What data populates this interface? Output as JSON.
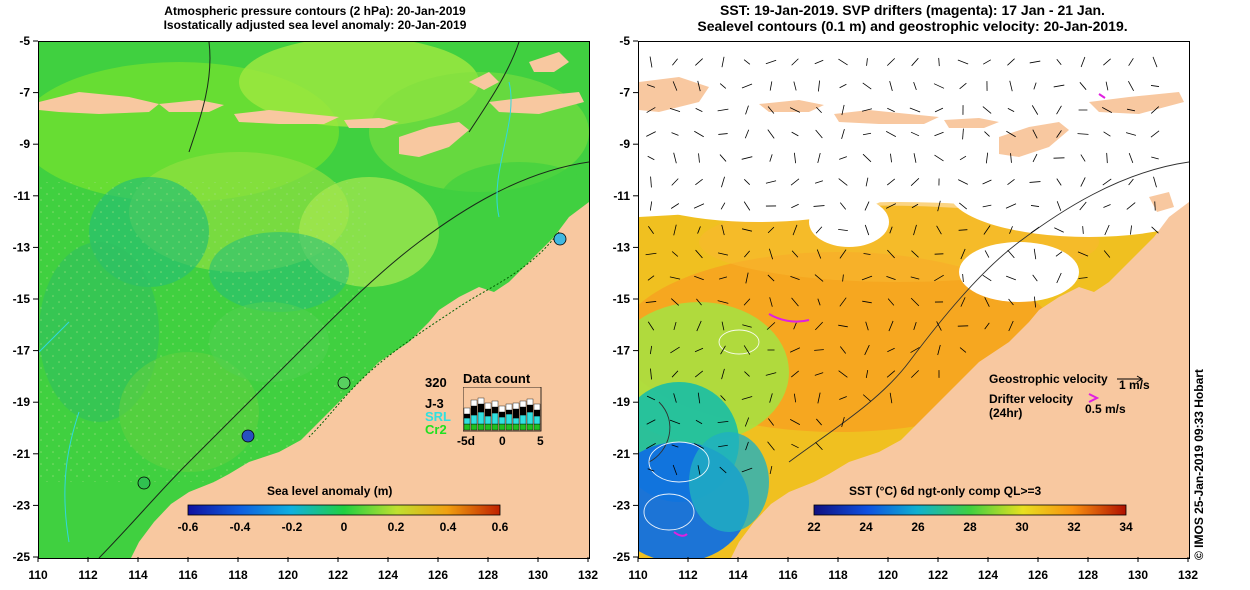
{
  "left_panel": {
    "title_line1": "Atmospheric pressure contours (2 hPa): 20-Jan-2019",
    "title_line2": "Isostatically adjusted sea level anomaly: 20-Jan-2019",
    "colorbar_title": "Sea level anomaly (m)",
    "colorbar_ticks": [
      "-0.6",
      "-0.4",
      "-0.2",
      "0",
      "0.2",
      "0.4",
      "0.6"
    ],
    "colorbar_range": [
      -0.6,
      0.6
    ],
    "inset": {
      "title": "Data count",
      "max_label": "320",
      "series": [
        {
          "name": "J-3",
          "color": "#000000"
        },
        {
          "name": "SRL",
          "color": "#30e0e0"
        },
        {
          "name": "Cr2",
          "color": "#20c020"
        }
      ],
      "x_ticks": [
        "-5d",
        "0",
        "5"
      ]
    }
  },
  "right_panel": {
    "title_line1": "SST: 19-Jan-2019. SVP drifters (magenta): 17 Jan - 21 Jan.",
    "title_line2": "Sealevel contours (0.1 m) and geostrophic velocity: 20-Jan-2019.",
    "colorbar_title": "SST (°C) 6d ngt-only comp QL>=3",
    "colorbar_ticks": [
      "22",
      "24",
      "26",
      "28",
      "30",
      "32",
      "34"
    ],
    "colorbar_range": [
      22,
      34
    ],
    "legend_geo_label": "Geostrophic velocity",
    "legend_geo_scale": "1 m/s",
    "legend_drifter_label": "Drifter velocity",
    "legend_drifter_sub": "(24hr)",
    "legend_drifter_scale": "0.5 m/s"
  },
  "axes": {
    "lon_ticks": [
      "110",
      "112",
      "114",
      "116",
      "118",
      "120",
      "122",
      "124",
      "126",
      "128",
      "130",
      "132"
    ],
    "lat_ticks": [
      "-5",
      "-7",
      "-9",
      "-11",
      "-13",
      "-15",
      "-17",
      "-19",
      "-21",
      "-23",
      "-25"
    ],
    "lon_range": [
      110,
      132
    ],
    "lat_range": [
      -25,
      -5
    ]
  },
  "copyright": "© IMOS 25-Jan-2019 09:33 Hobart",
  "colors": {
    "land": "#f8c8a0",
    "sla_base": "#40d040",
    "sst_warm": "#f8c020",
    "sst_cool": "#0080f0"
  }
}
